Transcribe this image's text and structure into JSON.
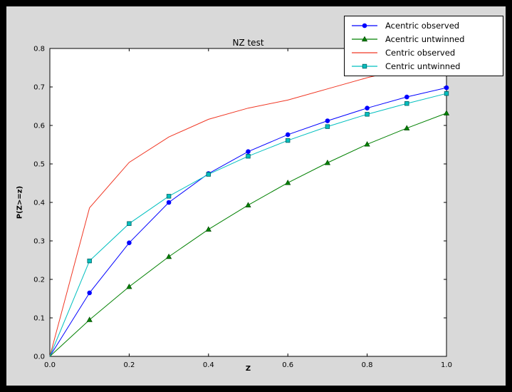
{
  "chart_data": {
    "type": "line",
    "title": "NZ test",
    "xlabel": "Z",
    "ylabel": "P(Z>=z)",
    "xlim": [
      0.0,
      1.0
    ],
    "ylim": [
      0.0,
      0.8
    ],
    "grid": false,
    "legend_position": "upper-right",
    "xticks": [
      "0.0",
      "0.2",
      "0.4",
      "0.6",
      "0.8",
      "1.0"
    ],
    "yticks": [
      "0.0",
      "0.1",
      "0.2",
      "0.3",
      "0.4",
      "0.5",
      "0.6",
      "0.7",
      "0.8"
    ],
    "x": [
      0.0,
      0.1,
      0.2,
      0.3,
      0.4,
      0.5,
      0.6,
      0.7,
      0.8,
      0.9,
      1.0
    ],
    "series": [
      {
        "name": "Acentric observed",
        "color": "#0000ff",
        "marker": "circle",
        "values": [
          0.0,
          0.165,
          0.295,
          0.4,
          0.475,
          0.532,
          0.576,
          0.612,
          0.645,
          0.674,
          0.698
        ]
      },
      {
        "name": "Acentric untwinned",
        "color": "#008000",
        "marker": "triangle",
        "values": [
          0.0,
          0.095,
          0.181,
          0.259,
          0.33,
          0.393,
          0.451,
          0.503,
          0.551,
          0.593,
          0.632
        ]
      },
      {
        "name": "Centric observed",
        "color": "#f03724",
        "marker": "none",
        "values": [
          0.0,
          0.386,
          0.504,
          0.57,
          0.616,
          0.645,
          0.666,
          0.695,
          0.724,
          0.748,
          0.765
        ]
      },
      {
        "name": "Centric untwinned",
        "color": "#00bfbf",
        "marker": "square",
        "values": [
          0.0,
          0.248,
          0.345,
          0.416,
          0.473,
          0.52,
          0.561,
          0.597,
          0.629,
          0.657,
          0.683
        ]
      }
    ],
    "colors": {
      "figure_background": "#d9d9d9",
      "axes_background": "#ffffff",
      "outer_background": "#000000"
    }
  }
}
